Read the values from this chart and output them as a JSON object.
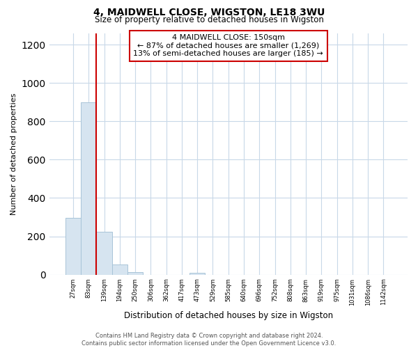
{
  "title": "4, MAIDWELL CLOSE, WIGSTON, LE18 3WU",
  "subtitle": "Size of property relative to detached houses in Wigston",
  "xlabel": "Distribution of detached houses by size in Wigston",
  "ylabel": "Number of detached properties",
  "bar_labels": [
    "27sqm",
    "83sqm",
    "139sqm",
    "194sqm",
    "250sqm",
    "306sqm",
    "362sqm",
    "417sqm",
    "473sqm",
    "529sqm",
    "585sqm",
    "640sqm",
    "696sqm",
    "752sqm",
    "808sqm",
    "863sqm",
    "919sqm",
    "975sqm",
    "1031sqm",
    "1086sqm",
    "1142sqm"
  ],
  "bar_heights": [
    295,
    900,
    225,
    55,
    12,
    0,
    0,
    0,
    10,
    0,
    0,
    0,
    0,
    0,
    0,
    0,
    0,
    0,
    0,
    0,
    0
  ],
  "bar_color": "#d6e4f0",
  "bar_edge_color": "#a8c4d8",
  "vline_x": 1.5,
  "vline_color": "#cc0000",
  "annotation_line1": "4 MAIDWELL CLOSE: 150sqm",
  "annotation_line2": "← 87% of detached houses are smaller (1,269)",
  "annotation_line3": "13% of semi-detached houses are larger (185) →",
  "annotation_box_color": "#ffffff",
  "annotation_box_edge": "#cc0000",
  "ylim": [
    0,
    1260
  ],
  "yticks": [
    0,
    200,
    400,
    600,
    800,
    1000,
    1200
  ],
  "footer_text": "Contains HM Land Registry data © Crown copyright and database right 2024.\nContains public sector information licensed under the Open Government Licence v3.0.",
  "background_color": "#ffffff",
  "grid_color": "#c8d8e8"
}
